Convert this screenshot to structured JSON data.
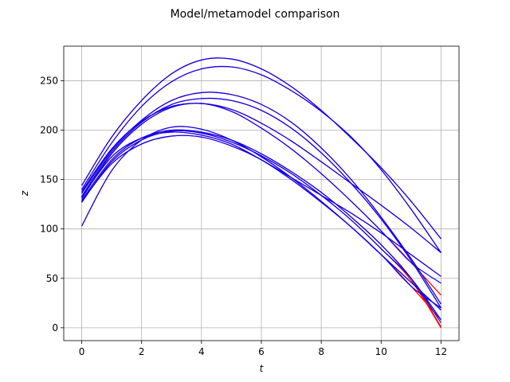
{
  "chart_data": {
    "type": "line",
    "title": "Model/metamodel comparison",
    "xlabel": "t",
    "ylabel": "z",
    "xlim": [
      -0.6,
      12.6
    ],
    "ylim": [
      -13,
      285
    ],
    "xticks": [
      0,
      2,
      4,
      6,
      8,
      10,
      12
    ],
    "yticks": [
      0,
      50,
      100,
      150,
      200,
      250
    ],
    "grid": true,
    "colors": {
      "model": "#ff0000",
      "metamodel": "#0000ff"
    },
    "x": [
      0,
      1,
      2,
      3,
      4,
      5,
      6,
      7,
      8,
      9,
      10,
      11,
      12
    ],
    "model": [
      {
        "values": [
          144,
          193,
          230,
          257,
          271,
          272,
          262,
          244,
          220,
          192,
          162,
          128,
          90
        ]
      },
      {
        "values": [
          140,
          187,
          224,
          249,
          262,
          264,
          256,
          240,
          219,
          193,
          160,
          120,
          76
        ]
      },
      {
        "values": [
          136,
          180,
          210,
          230,
          238,
          236,
          226,
          208,
          182,
          150,
          112,
          70,
          24
        ]
      },
      {
        "values": [
          133,
          178,
          208,
          226,
          232,
          230,
          220,
          202,
          177,
          146,
          110,
          68,
          20
        ]
      },
      {
        "values": [
          138,
          181,
          209,
          224,
          227,
          221,
          207,
          189,
          168,
          146,
          124,
          101,
          76
        ]
      },
      {
        "values": [
          131,
          176,
          206,
          223,
          227,
          219,
          202,
          181,
          156,
          128,
          98,
          66,
          33
        ]
      },
      {
        "values": [
          129,
          170,
          192,
          200,
          198,
          190,
          176,
          158,
          137,
          112,
          84,
          50,
          1
        ]
      },
      {
        "values": [
          127,
          168,
          190,
          199,
          197,
          188,
          174,
          156,
          134,
          109,
          80,
          48,
          0
        ]
      },
      {
        "values": [
          132,
          173,
          192,
          198,
          195,
          186,
          170,
          152,
          134,
          116,
          96,
          74,
          52
        ]
      },
      {
        "values": [
          128,
          166,
          186,
          194,
          193,
          184,
          170,
          150,
          127,
          102,
          74,
          42,
          8
        ]
      },
      {
        "values": [
          103,
          159,
          190,
          203,
          201,
          190,
          173,
          152,
          128,
          102,
          74,
          46,
          18
        ]
      }
    ],
    "metamodel": [
      {
        "values": [
          144,
          193,
          230,
          257,
          271,
          272,
          262,
          244,
          220,
          192,
          162,
          128,
          90
        ]
      },
      {
        "values": [
          140,
          187,
          224,
          249,
          262,
          264,
          256,
          240,
          219,
          193,
          160,
          120,
          76
        ]
      },
      {
        "values": [
          136,
          180,
          210,
          230,
          238,
          236,
          226,
          208,
          182,
          150,
          112,
          70,
          24
        ]
      },
      {
        "values": [
          133,
          178,
          208,
          226,
          232,
          230,
          220,
          202,
          177,
          146,
          110,
          68,
          20
        ]
      },
      {
        "values": [
          138,
          181,
          209,
          224,
          227,
          221,
          207,
          189,
          168,
          146,
          124,
          101,
          76
        ]
      },
      {
        "values": [
          131,
          176,
          206,
          223,
          227,
          219,
          202,
          181,
          156,
          128,
          98,
          66,
          45
        ]
      },
      {
        "values": [
          129,
          170,
          192,
          200,
          198,
          190,
          176,
          158,
          137,
          112,
          84,
          50,
          5
        ]
      },
      {
        "values": [
          127,
          168,
          190,
          199,
          197,
          188,
          174,
          156,
          134,
          109,
          80,
          50,
          8
        ]
      },
      {
        "values": [
          132,
          173,
          192,
          198,
          195,
          186,
          170,
          152,
          134,
          116,
          96,
          74,
          52
        ]
      },
      {
        "values": [
          128,
          166,
          186,
          194,
          193,
          184,
          170,
          150,
          127,
          102,
          74,
          42,
          20
        ]
      },
      {
        "values": [
          103,
          159,
          190,
          203,
          201,
          190,
          173,
          152,
          128,
          102,
          74,
          46,
          18
        ]
      }
    ]
  }
}
